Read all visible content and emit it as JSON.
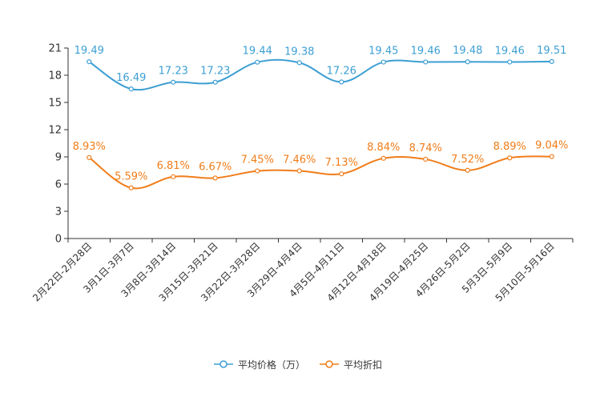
{
  "chart_data": {
    "type": "line",
    "categories": [
      "2月22日-2月28日",
      "3月1日-3月7日",
      "3月8日-3月14日",
      "3月15日-3月21日",
      "3月22日-3月28日",
      "3月29日-4月4日",
      "4月5日-4月11日",
      "4月12日-4月18日",
      "4月19日-4月25日",
      "4月26日-5月2日",
      "5月3日-5月9日",
      "5月10日-5月16日"
    ],
    "series": [
      {
        "name": "平均价格（万）",
        "color": "#3d9fd3",
        "values": [
          19.49,
          16.49,
          17.23,
          17.23,
          19.44,
          19.38,
          17.26,
          19.45,
          19.46,
          19.48,
          19.46,
          19.51
        ],
        "labels": [
          "19.49",
          "16.49",
          "17.23",
          "17.23",
          "19.44",
          "19.38",
          "17.26",
          "19.45",
          "19.46",
          "19.48",
          "19.46",
          "19.51"
        ]
      },
      {
        "name": "平均折扣",
        "color": "#f07d1a",
        "values": [
          8.93,
          5.59,
          6.81,
          6.67,
          7.45,
          7.46,
          7.13,
          8.84,
          8.74,
          7.52,
          8.89,
          9.04
        ],
        "labels": [
          "8.93%",
          "5.59%",
          "6.81%",
          "6.67%",
          "7.45%",
          "7.46%",
          "7.13%",
          "8.84%",
          "8.74%",
          "7.52%",
          "8.89%",
          "9.04%"
        ]
      }
    ],
    "y_ticks": [
      "0",
      "3",
      "6",
      "9",
      "12",
      "15",
      "18",
      "21"
    ],
    "ylim": [
      0,
      21
    ],
    "title": "",
    "xlabel": "",
    "ylabel": "",
    "grid": false,
    "legend_position": "bottom"
  }
}
